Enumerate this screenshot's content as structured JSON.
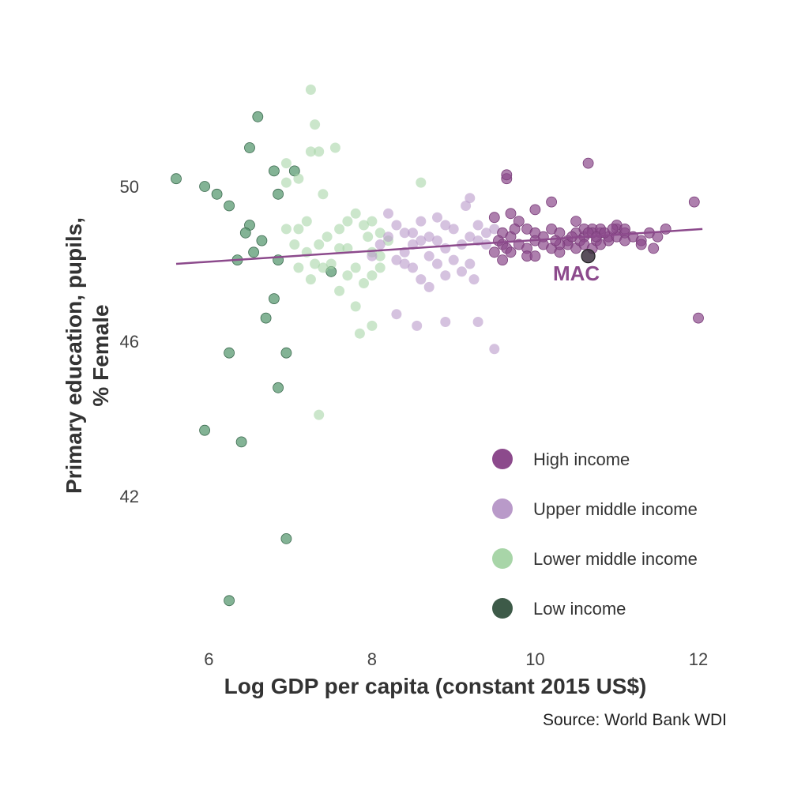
{
  "chart_data": {
    "type": "scatter",
    "title": "",
    "xlabel": "Log GDP per capita (constant 2015 US$)",
    "ylabel_lines": [
      "Primary education, pupils,",
      "% Female"
    ],
    "caption": "Source: World Bank WDI",
    "xlim": [
      5.4,
      12.3
    ],
    "ylim": [
      38.8,
      52.8
    ],
    "xticks": [
      6,
      8,
      10,
      12
    ],
    "yticks": [
      42,
      46,
      50
    ],
    "grid": false,
    "legend_position": "bottom-right",
    "legend": [
      "High income",
      "Upper middle income",
      "Lower middle income",
      "Low income"
    ],
    "trend_line": {
      "x": [
        5.6,
        12.05
      ],
      "y": [
        48.0,
        48.9
      ],
      "color": "#8c4a8c"
    },
    "annotation": {
      "label": "MAC",
      "x": 10.65,
      "y": 48.2,
      "color": "#8c4a8c"
    },
    "series": [
      {
        "name": "High income",
        "color": "#8c4a8c",
        "points": [
          [
            9.65,
            50.2
          ],
          [
            9.65,
            50.3
          ],
          [
            10.65,
            50.6
          ],
          [
            11.95,
            49.6
          ],
          [
            12.0,
            46.6
          ],
          [
            10.2,
            49.6
          ],
          [
            10.0,
            49.4
          ],
          [
            9.5,
            49.2
          ],
          [
            9.7,
            49.3
          ],
          [
            9.8,
            49.1
          ],
          [
            9.6,
            48.8
          ],
          [
            9.7,
            48.7
          ],
          [
            9.9,
            48.9
          ],
          [
            10.0,
            48.8
          ],
          [
            10.1,
            48.7
          ],
          [
            10.2,
            48.9
          ],
          [
            10.3,
            48.8
          ],
          [
            10.4,
            48.6
          ],
          [
            10.5,
            48.8
          ],
          [
            10.6,
            48.7
          ],
          [
            10.7,
            48.9
          ],
          [
            10.8,
            48.8
          ],
          [
            10.9,
            48.7
          ],
          [
            11.0,
            48.9
          ],
          [
            11.1,
            48.8
          ],
          [
            11.2,
            48.7
          ],
          [
            11.3,
            48.6
          ],
          [
            11.4,
            48.8
          ],
          [
            11.5,
            48.7
          ],
          [
            11.6,
            48.9
          ],
          [
            9.55,
            48.6
          ],
          [
            9.6,
            48.5
          ],
          [
            9.65,
            48.4
          ],
          [
            9.7,
            48.3
          ],
          [
            9.8,
            48.5
          ],
          [
            9.9,
            48.4
          ],
          [
            10.0,
            48.6
          ],
          [
            10.1,
            48.5
          ],
          [
            10.2,
            48.4
          ],
          [
            10.3,
            48.3
          ],
          [
            10.4,
            48.5
          ],
          [
            10.5,
            48.4
          ],
          [
            10.55,
            48.6
          ],
          [
            10.6,
            48.5
          ],
          [
            10.7,
            48.4
          ],
          [
            10.75,
            48.6
          ],
          [
            10.8,
            48.5
          ],
          [
            10.9,
            48.6
          ],
          [
            11.0,
            48.7
          ],
          [
            11.1,
            48.6
          ],
          [
            9.5,
            48.3
          ],
          [
            9.6,
            48.1
          ],
          [
            9.9,
            48.2
          ],
          [
            10.0,
            48.2
          ],
          [
            10.3,
            48.5
          ],
          [
            10.5,
            49.1
          ],
          [
            10.6,
            48.9
          ],
          [
            10.7,
            48.8
          ],
          [
            10.8,
            48.9
          ],
          [
            11.0,
            49.0
          ],
          [
            11.1,
            48.9
          ],
          [
            11.3,
            48.5
          ],
          [
            11.45,
            48.4
          ],
          [
            10.65,
            48.8
          ],
          [
            10.75,
            48.7
          ],
          [
            10.85,
            48.8
          ],
          [
            10.95,
            48.9
          ],
          [
            9.75,
            48.9
          ],
          [
            10.25,
            48.6
          ],
          [
            10.45,
            48.7
          ]
        ]
      },
      {
        "name": "Upper middle income",
        "color": "#b99ac9",
        "points": [
          [
            9.2,
            49.7
          ],
          [
            9.15,
            49.5
          ],
          [
            8.8,
            49.2
          ],
          [
            8.9,
            49.0
          ],
          [
            9.0,
            48.9
          ],
          [
            9.3,
            49.0
          ],
          [
            9.4,
            48.8
          ],
          [
            9.5,
            48.9
          ],
          [
            8.7,
            48.7
          ],
          [
            8.6,
            48.6
          ],
          [
            8.5,
            48.5
          ],
          [
            8.4,
            48.3
          ],
          [
            8.3,
            48.1
          ],
          [
            8.5,
            47.9
          ],
          [
            8.6,
            47.6
          ],
          [
            8.7,
            47.4
          ],
          [
            8.2,
            49.3
          ],
          [
            8.3,
            49.0
          ],
          [
            8.4,
            48.8
          ],
          [
            8.5,
            48.8
          ],
          [
            8.6,
            49.1
          ],
          [
            8.8,
            48.6
          ],
          [
            8.9,
            48.4
          ],
          [
            9.1,
            48.5
          ],
          [
            9.2,
            48.7
          ],
          [
            9.3,
            48.6
          ],
          [
            9.4,
            48.5
          ],
          [
            8.2,
            48.7
          ],
          [
            8.1,
            48.5
          ],
          [
            8.0,
            48.2
          ],
          [
            8.9,
            47.7
          ],
          [
            9.0,
            48.1
          ],
          [
            9.1,
            47.8
          ],
          [
            9.2,
            48.0
          ],
          [
            8.3,
            46.7
          ],
          [
            8.55,
            46.4
          ],
          [
            8.9,
            46.5
          ],
          [
            9.3,
            46.5
          ],
          [
            9.5,
            45.8
          ],
          [
            9.25,
            47.6
          ],
          [
            8.4,
            48.0
          ],
          [
            8.7,
            48.2
          ],
          [
            8.8,
            48.0
          ]
        ]
      },
      {
        "name": "Lower middle income",
        "color": "#a8d5a8",
        "points": [
          [
            7.25,
            52.5
          ],
          [
            7.3,
            51.6
          ],
          [
            7.25,
            50.9
          ],
          [
            7.35,
            50.9
          ],
          [
            7.55,
            51.0
          ],
          [
            6.95,
            50.6
          ],
          [
            6.95,
            50.1
          ],
          [
            7.1,
            50.2
          ],
          [
            7.4,
            49.8
          ],
          [
            6.95,
            48.9
          ],
          [
            7.1,
            48.9
          ],
          [
            7.2,
            49.1
          ],
          [
            7.05,
            48.5
          ],
          [
            7.2,
            48.3
          ],
          [
            7.35,
            48.5
          ],
          [
            7.45,
            48.7
          ],
          [
            7.6,
            48.9
          ],
          [
            7.7,
            48.4
          ],
          [
            7.8,
            49.3
          ],
          [
            7.9,
            49.0
          ],
          [
            8.0,
            49.1
          ],
          [
            8.1,
            48.8
          ],
          [
            8.2,
            48.6
          ],
          [
            7.1,
            47.9
          ],
          [
            7.25,
            47.6
          ],
          [
            7.4,
            47.9
          ],
          [
            7.5,
            48.0
          ],
          [
            7.7,
            47.7
          ],
          [
            7.8,
            47.9
          ],
          [
            7.9,
            47.5
          ],
          [
            8.0,
            47.7
          ],
          [
            8.1,
            47.9
          ],
          [
            7.6,
            47.3
          ],
          [
            7.8,
            46.9
          ],
          [
            7.85,
            46.2
          ],
          [
            8.0,
            46.4
          ],
          [
            7.35,
            44.1
          ],
          [
            7.6,
            48.4
          ],
          [
            8.6,
            50.1
          ],
          [
            8.0,
            48.3
          ],
          [
            8.1,
            48.2
          ],
          [
            7.95,
            48.7
          ],
          [
            7.7,
            49.1
          ],
          [
            7.3,
            48.0
          ]
        ]
      },
      {
        "name": "Low income",
        "color": "#5a9a72",
        "points": [
          [
            6.6,
            51.8
          ],
          [
            5.6,
            50.2
          ],
          [
            5.95,
            50.0
          ],
          [
            6.1,
            49.8
          ],
          [
            6.25,
            49.5
          ],
          [
            6.5,
            51.0
          ],
          [
            6.8,
            50.4
          ],
          [
            7.05,
            50.4
          ],
          [
            6.85,
            49.8
          ],
          [
            6.5,
            49.0
          ],
          [
            6.45,
            48.8
          ],
          [
            6.35,
            48.1
          ],
          [
            6.85,
            48.1
          ],
          [
            6.8,
            47.1
          ],
          [
            6.7,
            46.6
          ],
          [
            7.5,
            47.8
          ],
          [
            6.25,
            45.7
          ],
          [
            6.95,
            45.7
          ],
          [
            6.85,
            44.8
          ],
          [
            5.95,
            43.7
          ],
          [
            6.4,
            43.4
          ],
          [
            6.95,
            40.9
          ],
          [
            6.25,
            39.3
          ],
          [
            6.65,
            48.6
          ],
          [
            6.55,
            48.3
          ]
        ]
      }
    ]
  }
}
